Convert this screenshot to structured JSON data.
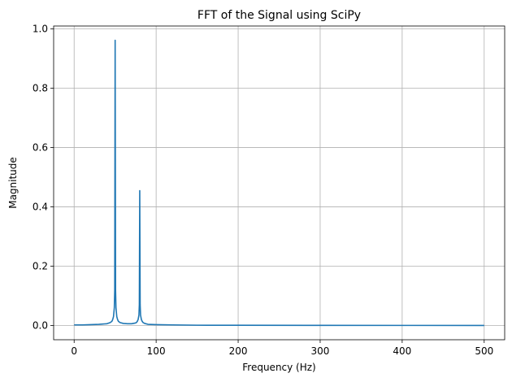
{
  "chart_data": {
    "type": "line",
    "title": "FFT of the Signal using SciPy",
    "xlabel": "Frequency (Hz)",
    "ylabel": "Magnitude",
    "xlim": [
      -25,
      525
    ],
    "ylim": [
      -0.048,
      1.01
    ],
    "grid": true,
    "x_ticks": [
      0,
      100,
      200,
      300,
      400,
      500
    ],
    "x_tick_labels": [
      "0",
      "100",
      "200",
      "300",
      "400",
      "500"
    ],
    "y_ticks": [
      0.0,
      0.2,
      0.4,
      0.6,
      0.8,
      1.0
    ],
    "y_tick_labels": [
      "0.0",
      "0.2",
      "0.4",
      "0.6",
      "0.8",
      "1.0"
    ],
    "series": [
      {
        "color": "#1f77b4",
        "x": [
          0,
          10,
          20,
          30,
          40,
          44,
          46,
          47,
          48,
          49,
          49.5,
          50,
          50.5,
          51,
          52,
          53,
          54,
          56,
          60,
          65,
          70,
          74,
          76,
          77,
          78,
          79,
          79.5,
          80,
          80.5,
          81,
          82,
          83,
          84,
          86,
          90,
          100,
          120,
          150,
          200,
          300,
          400,
          500
        ],
        "y": [
          0.002,
          0.002,
          0.003,
          0.004,
          0.006,
          0.01,
          0.014,
          0.02,
          0.03,
          0.06,
          0.12,
          0.962,
          0.12,
          0.06,
          0.03,
          0.02,
          0.014,
          0.01,
          0.007,
          0.006,
          0.006,
          0.008,
          0.01,
          0.014,
          0.02,
          0.035,
          0.07,
          0.455,
          0.07,
          0.035,
          0.02,
          0.014,
          0.01,
          0.007,
          0.004,
          0.003,
          0.002,
          0.001,
          0.0008,
          0.0005,
          0.0003,
          0.0002
        ]
      }
    ]
  }
}
